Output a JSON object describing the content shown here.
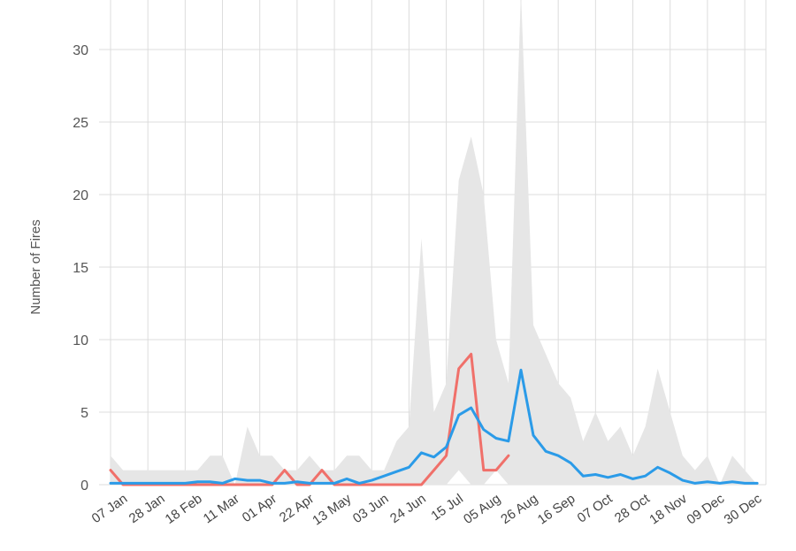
{
  "chart_data": {
    "type": "line",
    "title": "",
    "ylabel": "Number of Fires",
    "xlabel": "",
    "ylim": [
      0,
      34
    ],
    "yticks": [
      0,
      5,
      10,
      15,
      20,
      25,
      30
    ],
    "xtick_labels": [
      "07 Jan",
      "28 Jan",
      "18 Feb",
      "11 Mar",
      "01 Apr",
      "22 Apr",
      "13 May",
      "03 Jun",
      "24 Jun",
      "15 Jul",
      "05 Aug",
      "26 Aug",
      "16 Sep",
      "07 Oct",
      "28 Oct",
      "18 Nov",
      "09 Dec",
      "30 Dec"
    ],
    "grid": true,
    "colors": {
      "range": "#e6e6e6",
      "current": "#f0706a",
      "average": "#2b9be8",
      "grid": "#dcdcdc"
    },
    "series": [
      {
        "role": "range-band",
        "style": "area",
        "min": [
          0,
          0,
          0,
          0,
          0,
          0,
          0,
          0,
          0,
          0,
          0,
          0,
          0,
          0,
          0,
          0,
          0,
          0,
          0,
          0,
          0,
          0,
          0,
          0,
          0,
          0,
          0,
          0,
          1,
          0,
          0,
          1,
          0,
          0,
          0,
          0,
          0,
          0,
          0,
          0,
          0,
          0,
          0,
          0,
          0,
          0,
          0,
          0,
          0,
          0,
          0,
          0,
          0
        ],
        "max": [
          2,
          1,
          1,
          1,
          1,
          1,
          1,
          1,
          2,
          2,
          0,
          4,
          2,
          2,
          1,
          1,
          2,
          1,
          1,
          2,
          2,
          1,
          1,
          3,
          4,
          17,
          5,
          7,
          21,
          24,
          20,
          10,
          7,
          34,
          11,
          9,
          7,
          6,
          3,
          5,
          3,
          4,
          2,
          4,
          8,
          5,
          2,
          1,
          2,
          0,
          2,
          1,
          0
        ]
      },
      {
        "role": "current-year",
        "style": "line",
        "values": [
          1,
          0,
          0,
          0,
          0,
          0,
          0,
          0,
          0,
          0,
          0,
          0,
          0,
          0,
          1,
          0,
          0,
          1,
          0,
          0,
          0,
          0,
          0,
          0,
          0,
          0,
          1,
          2,
          8,
          9,
          1,
          1,
          2
        ]
      },
      {
        "role": "average",
        "style": "line",
        "values": [
          0.1,
          0.1,
          0.1,
          0.1,
          0.1,
          0.1,
          0.1,
          0.2,
          0.2,
          0.1,
          0.4,
          0.3,
          0.3,
          0.1,
          0.1,
          0.2,
          0.1,
          0.1,
          0.1,
          0.4,
          0.1,
          0.3,
          0.6,
          0.9,
          1.2,
          2.2,
          1.9,
          2.6,
          4.8,
          5.3,
          3.8,
          3.2,
          3.0,
          7.9,
          3.4,
          2.3,
          2.0,
          1.5,
          0.6,
          0.7,
          0.5,
          0.7,
          0.4,
          0.6,
          1.2,
          0.8,
          0.3,
          0.1,
          0.2,
          0.1,
          0.2,
          0.1,
          0.1
        ]
      }
    ]
  }
}
